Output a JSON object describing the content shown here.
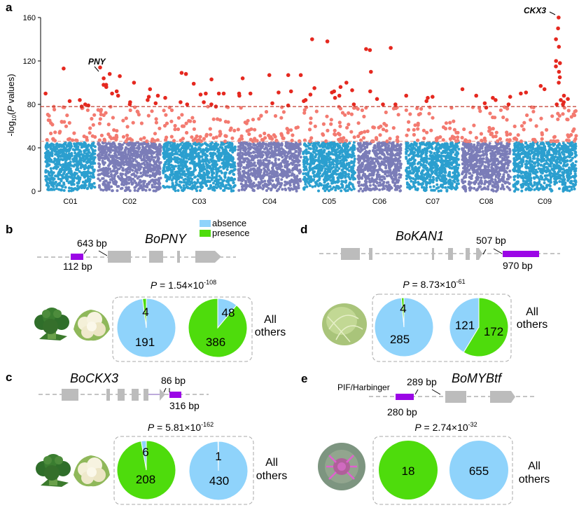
{
  "colors": {
    "blue": "#2b9fcf",
    "purple": "#7b7db8",
    "pink": "#f37a70",
    "red": "#e5281f",
    "absence": "#8fd3fb",
    "presence": "#4edc0c",
    "insertion": "#9b06e6",
    "exon": "#bcbcbc"
  },
  "panel_a": {
    "letter": "a",
    "ylabel": {
      "pre": "-log",
      "sub": "10",
      "open": "(",
      "p": "P",
      "post": " values)"
    },
    "hits": [
      {
        "name": "PNY",
        "chrom": "C02",
        "value": 114
      },
      {
        "name": "CKX3",
        "chrom": "C09",
        "value": 160
      }
    ]
  },
  "chart_data": {
    "type": "scatter",
    "ylim": [
      0,
      160
    ],
    "yticks": [
      "0",
      "40",
      "80",
      "120",
      "160"
    ],
    "categories": [
      "C01",
      "C02",
      "C03",
      "C04",
      "C05",
      "C06",
      "C07",
      "C08",
      "C09"
    ],
    "thresholds": [
      78,
      46
    ],
    "significant_points": {
      "C01": [
        80,
        84,
        79,
        113,
        83,
        90,
        78
      ],
      "C02": [
        114,
        108,
        88,
        84,
        82,
        98,
        106,
        104,
        98,
        100,
        96,
        92,
        88,
        80,
        87,
        81,
        90,
        94
      ],
      "C03": [
        80,
        109,
        103,
        99,
        82,
        86,
        89,
        80,
        108,
        90,
        82,
        78,
        90,
        90
      ],
      "C04": [
        90,
        88,
        79,
        91,
        107,
        92,
        81,
        104,
        90,
        107,
        107
      ],
      "C05": [
        140,
        138,
        96,
        93,
        100,
        91,
        88,
        84,
        80,
        95,
        89,
        92,
        86,
        83
      ],
      "C06": [
        110,
        132,
        131,
        130,
        92,
        85,
        80,
        80
      ],
      "C07": [
        88,
        86,
        87,
        83
      ],
      "C08": [
        87,
        80,
        84,
        77,
        86,
        94,
        88,
        81
      ],
      "C09": [
        80,
        94,
        91,
        82,
        160,
        150,
        140,
        133,
        120,
        118,
        115,
        110,
        105,
        100,
        97,
        90,
        85,
        80,
        84,
        88
      ]
    }
  },
  "legend": {
    "absence": "absence",
    "presence": "presence"
  },
  "panels": {
    "b": {
      "letter": "b",
      "gene": "BoPNY",
      "bp1": "643 bp",
      "bp2": "112 bp",
      "p": {
        "symbol": "P",
        "eq": " = ",
        "coef": "1.54",
        "times": "×10",
        "exp": "-108"
      },
      "pies": [
        {
          "absence": 191,
          "presence": 4,
          "labels": [
            "4",
            "191"
          ]
        },
        {
          "absence": 48,
          "presence": 386,
          "labels": [
            "48",
            "386"
          ]
        }
      ],
      "others": [
        "All",
        "others"
      ]
    },
    "d": {
      "letter": "d",
      "gene": "BoKAN1",
      "bp1": "507 bp",
      "bp2": "970 bp",
      "p": {
        "symbol": "P",
        "eq": " = ",
        "coef": "8.73",
        "times": "×10",
        "exp": "-61"
      },
      "pies": [
        {
          "absence": 285,
          "presence": 4,
          "labels": [
            "4",
            "285"
          ]
        },
        {
          "absence": 121,
          "presence": 172,
          "labels": [
            "121",
            "172"
          ]
        }
      ],
      "others": [
        "All",
        "others"
      ]
    },
    "c": {
      "letter": "c",
      "gene": "BoCKX3",
      "bp1": "86 bp",
      "bp2": "316 bp",
      "p": {
        "symbol": "P",
        "eq": " = ",
        "coef": "5.81",
        "times": "×10",
        "exp": "-162"
      },
      "pies": [
        {
          "absence": 6,
          "presence": 208,
          "labels": [
            "6",
            "208"
          ]
        },
        {
          "absence": 430,
          "presence": 1,
          "labels": [
            "1",
            "430"
          ]
        }
      ],
      "others": [
        "All",
        "others"
      ]
    },
    "e": {
      "letter": "e",
      "gene": "BoMYBtf",
      "te": "PIF/Harbinger",
      "bp1": "289 bp",
      "bp2": "280 bp",
      "p": {
        "symbol": "P",
        "eq": " = ",
        "coef": "2.74",
        "times": "×10",
        "exp": "-32"
      },
      "pies": [
        {
          "absence": 0,
          "presence": 18,
          "labels": [
            "18"
          ]
        },
        {
          "absence": 655,
          "presence": 0,
          "labels": [
            "655"
          ]
        }
      ],
      "others": [
        "All",
        "others"
      ]
    }
  }
}
